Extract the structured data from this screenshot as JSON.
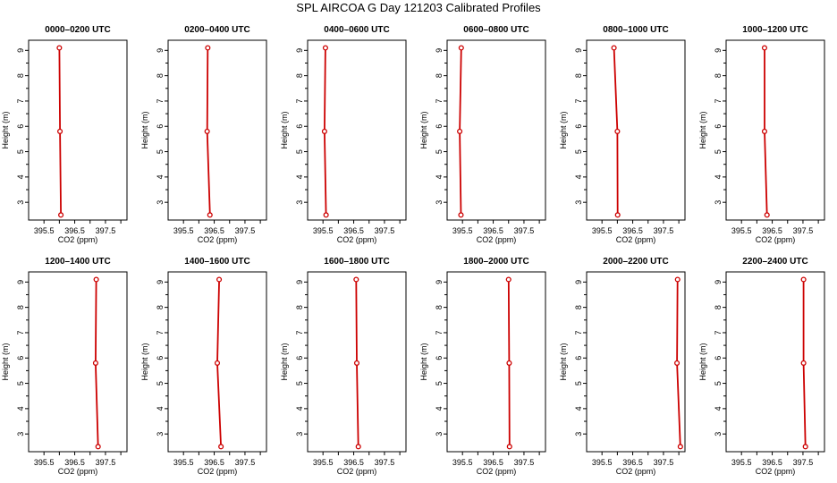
{
  "title": "SPL AIRCOA G  Day 121203  Calibrated Profiles",
  "chart_data": {
    "type": "line",
    "xlabel": "CO2 (ppm)",
    "ylabel": "Height (m)",
    "xlim": [
      395.0,
      398.2
    ],
    "ylim": [
      2.3,
      9.4
    ],
    "xticks": [
      395.5,
      396,
      396.5,
      397,
      397.5,
      398
    ],
    "xtick_labels": [
      "395.5",
      "",
      "396.5",
      "",
      "397.5",
      ""
    ],
    "yticks": [
      3,
      4,
      5,
      6,
      7,
      8,
      9
    ],
    "yticks_minor": [
      3.5,
      4.5,
      5.5,
      6.5,
      7.5,
      8.5
    ],
    "ytick_labels": [
      "3",
      "4",
      "5",
      "6",
      "7",
      "8",
      "9"
    ],
    "heights": [
      9.1,
      5.8,
      2.5
    ],
    "panels": [
      {
        "title": "0000–0200 UTC",
        "co2": [
          396.0,
          396.02,
          396.05
        ]
      },
      {
        "title": "0200–0400 UTC",
        "co2": [
          396.29,
          396.27,
          396.36
        ]
      },
      {
        "title": "0400–0600 UTC",
        "co2": [
          395.58,
          395.55,
          395.6
        ]
      },
      {
        "title": "0600–0800 UTC",
        "co2": [
          395.46,
          395.41,
          395.45
        ]
      },
      {
        "title": "0800–1000 UTC",
        "co2": [
          395.89,
          396.0,
          396.01
        ]
      },
      {
        "title": "1000–1200 UTC",
        "co2": [
          396.25,
          396.25,
          396.33
        ]
      },
      {
        "title": "1200–1400 UTC",
        "co2": [
          397.2,
          397.18,
          397.26
        ]
      },
      {
        "title": "1400–1600 UTC",
        "co2": [
          396.66,
          396.6,
          396.72
        ]
      },
      {
        "title": "1600–1800 UTC",
        "co2": [
          396.58,
          396.6,
          396.65
        ]
      },
      {
        "title": "1800–2000 UTC",
        "co2": [
          397.0,
          397.02,
          397.03
        ]
      },
      {
        "title": "2000–2200 UTC",
        "co2": [
          397.96,
          397.94,
          398.05
        ]
      },
      {
        "title": "2200–2400 UTC",
        "co2": [
          397.52,
          397.52,
          397.58
        ]
      }
    ]
  }
}
